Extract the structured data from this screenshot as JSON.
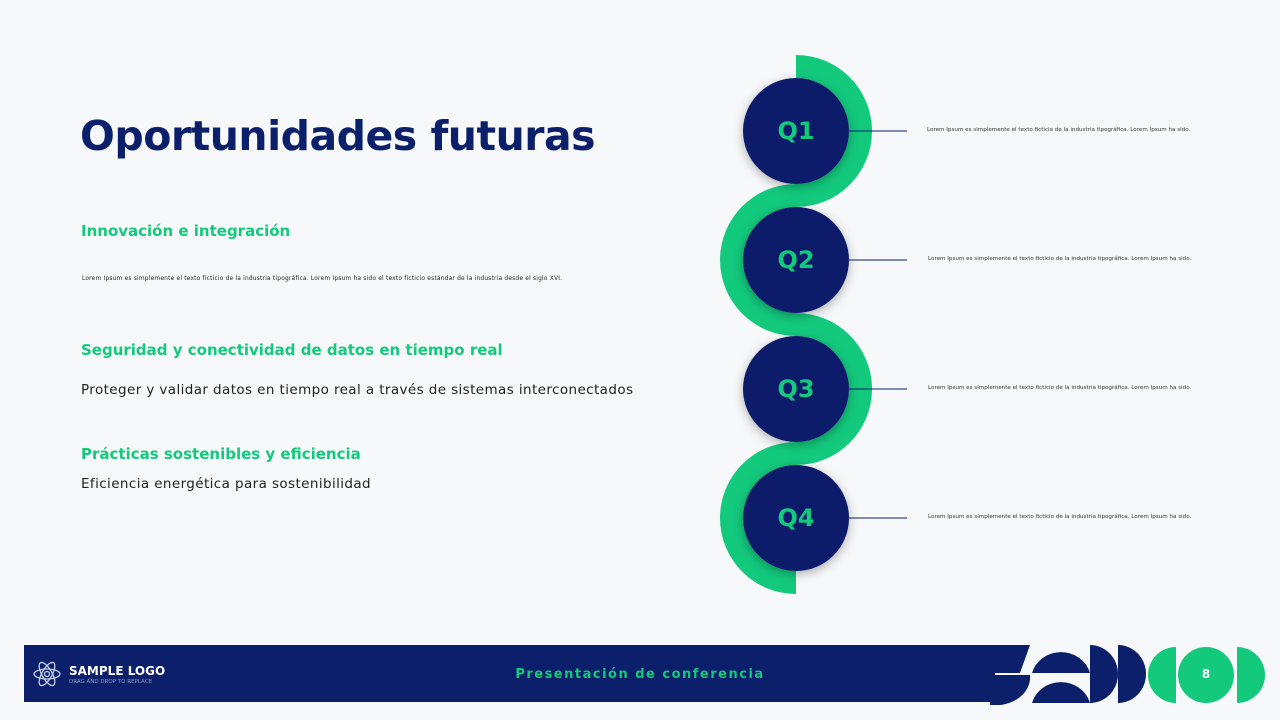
{
  "title": "Oportunidades futuras",
  "sections": [
    {
      "heading": "Innovación e integración",
      "text": "Lorem Ipsum es simplemente el texto ficticio de la industria tipográfica. Lorem Ipsum ha sido el texto ficticio estándar de la industria desde el siglo XVI."
    },
    {
      "heading": "Seguridad y conectividad de datos en tiempo real",
      "text": "Proteger y validar datos en tiempo real a través de sistemas interconectados"
    },
    {
      "heading": "Prácticas sostenibles y eficiencia",
      "text": "Eficiencia energética para sostenibilidad"
    }
  ],
  "timeline": [
    {
      "label": "Q1",
      "text": "Lorem Ipsum es simplemente el texto ficticio de la industria tipográfica. Lorem Ipsum ha sido."
    },
    {
      "label": "Q2",
      "text": "Lorem Ipsum es simplemente el texto ficticio de la industria tipográfica. Lorem Ipsum ha sido."
    },
    {
      "label": "Q3",
      "text": "Lorem Ipsum es simplemente el texto ficticio de la industria tipográfica. Lorem Ipsum ha sido."
    },
    {
      "label": "Q4",
      "text": "Lorem Ipsum es simplemente el texto ficticio de la industria tipográfica. Lorem Ipsum ha sido."
    }
  ],
  "footer": {
    "logo_title": "SAMPLE LOGO",
    "logo_sub": "DRAG AND DROP TO REPLACE",
    "center": "Presentación de conferencia",
    "page": "8"
  },
  "colors": {
    "navy": "#0b1f6b",
    "green": "#12c97c"
  }
}
